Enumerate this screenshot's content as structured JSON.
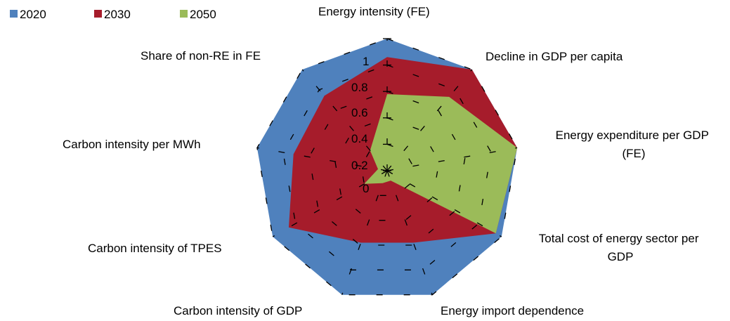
{
  "chart_data": {
    "type": "radar",
    "title": "",
    "categories": [
      "Energy intensity (FE)",
      "Decline in GDP per capita",
      "Energy expenditure per GDP (FE)",
      "Total cost of energy sector per GDP",
      "Energy import dependence",
      "Carbon intensity of GDP",
      "Carbon intensity of TPES",
      "Carbon intensity per MWh",
      "Share of non-RE in FE"
    ],
    "series": [
      {
        "name": "2020",
        "color": "#4F81BD",
        "values": [
          1.0,
          1.0,
          1.0,
          1.0,
          1.0,
          1.0,
          1.0,
          1.0,
          1.0
        ]
      },
      {
        "name": "2030",
        "color": "#A61C2B",
        "values": [
          0.86,
          1.0,
          1.0,
          0.95,
          0.58,
          0.58,
          0.86,
          0.72,
          0.74
        ]
      },
      {
        "name": "2050",
        "color": "#9BBB59",
        "values": [
          0.58,
          0.73,
          1.0,
          0.95,
          0.08,
          0.1,
          0.2,
          0.07,
          0.2
        ]
      }
    ],
    "radial_ticks": [
      "0",
      "0.2",
      "0.4",
      "0.6",
      "0.8",
      "1"
    ],
    "radial_tick_values": [
      0,
      0.2,
      0.4,
      0.6,
      0.8,
      1.0
    ],
    "rlim": [
      0,
      1
    ],
    "grid": true,
    "legend": "top-left"
  }
}
